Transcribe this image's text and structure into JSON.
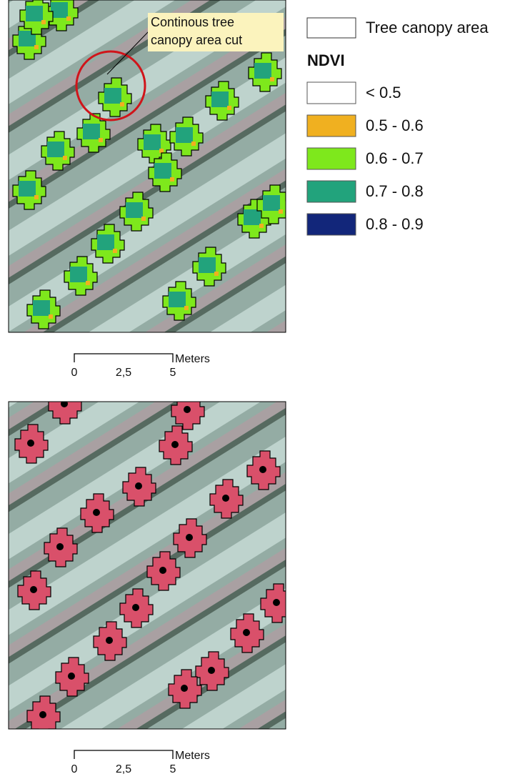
{
  "annotation": {
    "lines": [
      "Continous tree",
      "canopy area cut"
    ]
  },
  "legend": {
    "outline_label": "Tree canopy area",
    "title": "NDVI",
    "classes": [
      {
        "label": "< 0.5",
        "color": "#ffffff"
      },
      {
        "label": "0.5 - 0.6",
        "color": "#f0b020"
      },
      {
        "label": "0.6 - 0.7",
        "color": "#7ee81c"
      },
      {
        "label": "0.7 - 0.8",
        "color": "#22a37c"
      },
      {
        "label": "0.8 - 0.9",
        "color": "#12267a"
      }
    ]
  },
  "scale_bars": [
    {
      "unit": "Meters",
      "labels": [
        "0",
        "2,5",
        "5"
      ]
    },
    {
      "unit": "Meters",
      "labels": [
        "0",
        "2,5",
        "5"
      ]
    }
  ]
}
